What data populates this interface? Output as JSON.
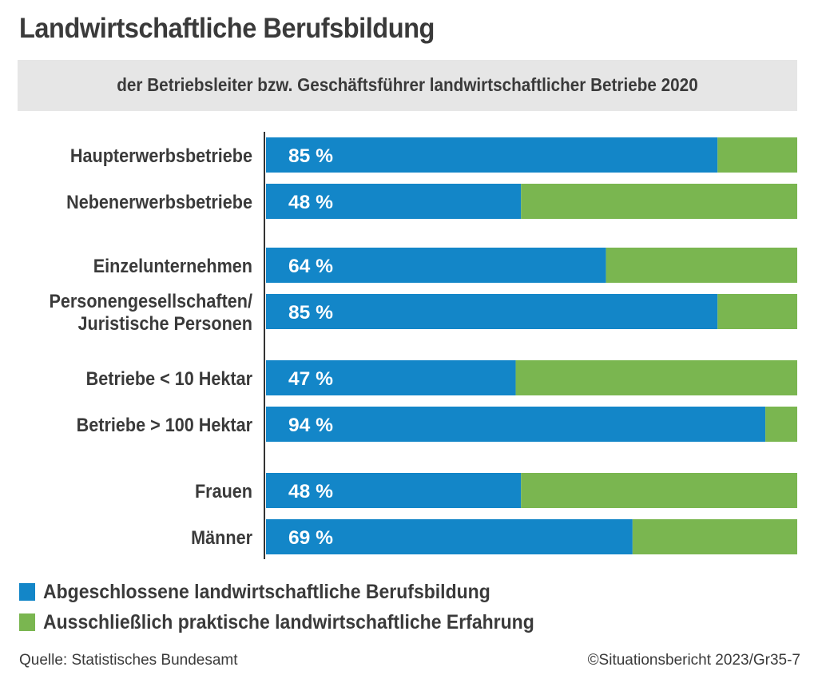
{
  "chart_data": {
    "type": "bar",
    "orientation": "horizontal",
    "stacked": true,
    "title": "Landwirtschaftliche Berufsbildung",
    "subtitle": "der Betriebsleiter bzw. Geschäftsführer landwirtschaftlicher Betriebe 2020",
    "categories": [
      [
        "Haupterwerbsbetriebe"
      ],
      [
        "Nebenerwerbsbetriebe"
      ],
      [
        "Einzelunternehmen"
      ],
      [
        "Personengesellschaften/",
        "Juristische Personen"
      ],
      [
        "Betriebe < 10 Hektar"
      ],
      [
        "Betriebe > 100 Hektar"
      ],
      [
        "Frauen"
      ],
      [
        "Männer"
      ]
    ],
    "groups": [
      [
        0,
        1
      ],
      [
        2,
        3
      ],
      [
        4,
        5
      ],
      [
        6,
        7
      ]
    ],
    "series": [
      {
        "name": "Abgeschlossene landwirtschaftliche Berufsbildung",
        "color": "#1386c8",
        "values": [
          85,
          48,
          64,
          85,
          47,
          94,
          48,
          69
        ]
      },
      {
        "name": "Ausschließlich praktische landwirtschaftliche Erfahrung",
        "color": "#7ab650",
        "values": [
          15,
          52,
          36,
          15,
          53,
          6,
          52,
          31
        ]
      }
    ],
    "value_labels": [
      "85 %",
      "48 %",
      "64 %",
      "85 %",
      "47 %",
      "94 %",
      "48 %",
      "69 %"
    ],
    "xlim": [
      0,
      100
    ],
    "grid": false,
    "legend_position": "bottom-left"
  },
  "footer": {
    "source": "Quelle: Statistisches Bundesamt",
    "copyright": "©Situationsbericht 2023/Gr35-7"
  }
}
